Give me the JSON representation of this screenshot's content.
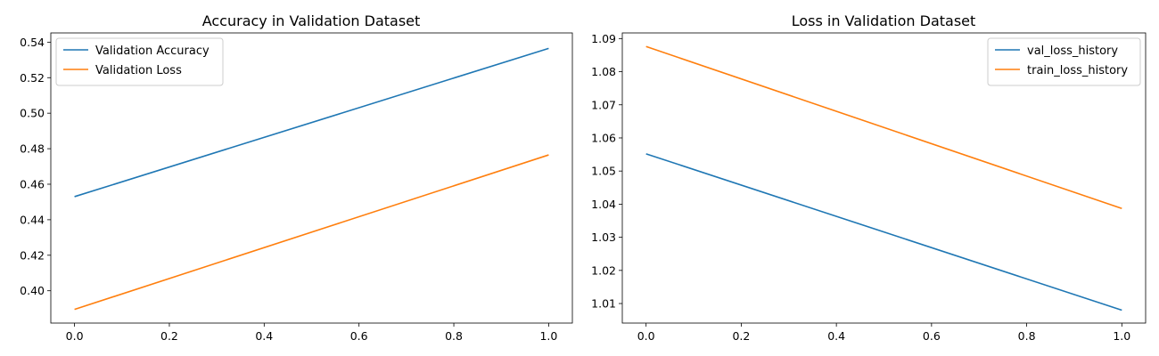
{
  "chart_data": [
    {
      "type": "line",
      "title": "Accuracy in Validation Dataset",
      "xlim": [
        -0.05,
        1.05
      ],
      "ylim": [
        0.3818,
        0.5452
      ],
      "xticks": [
        "0.0",
        "0.2",
        "0.4",
        "0.6",
        "0.8",
        "1.0"
      ],
      "yticks": [
        "0.40",
        "0.42",
        "0.44",
        "0.46",
        "0.48",
        "0.50",
        "0.52",
        "0.54"
      ],
      "legend_position": "upper-left",
      "series": [
        {
          "name": "Validation Accuracy",
          "color": "#1f77b4",
          "x": [
            0,
            1
          ],
          "y": [
            0.453,
            0.5365
          ]
        },
        {
          "name": "Validation Loss",
          "color": "#ff7f0e",
          "x": [
            0,
            1
          ],
          "y": [
            0.3895,
            0.4765
          ]
        }
      ]
    },
    {
      "type": "line",
      "title": "Loss in Validation Dataset",
      "xlim": [
        -0.05,
        1.05
      ],
      "ylim": [
        1.0041,
        1.0917
      ],
      "xticks": [
        "0.0",
        "0.2",
        "0.4",
        "0.6",
        "0.8",
        "1.0"
      ],
      "yticks": [
        "1.01",
        "1.02",
        "1.03",
        "1.04",
        "1.05",
        "1.06",
        "1.07",
        "1.08",
        "1.09"
      ],
      "legend_position": "upper-right",
      "series": [
        {
          "name": "val_loss_history",
          "color": "#1f77b4",
          "x": [
            0,
            1
          ],
          "y": [
            1.0552,
            1.008
          ]
        },
        {
          "name": "train_loss_history",
          "color": "#ff7f0e",
          "x": [
            0,
            1
          ],
          "y": [
            1.0876,
            1.0387
          ]
        }
      ]
    }
  ]
}
